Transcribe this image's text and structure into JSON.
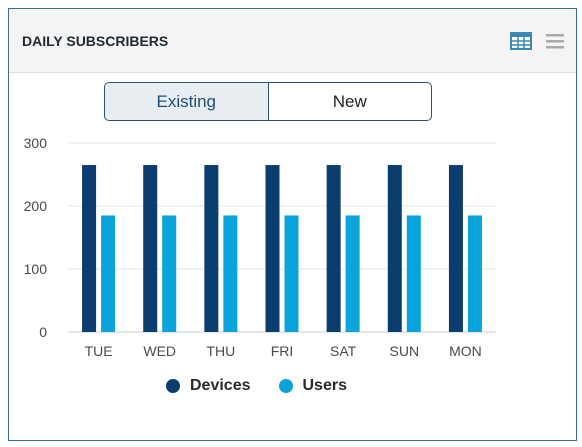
{
  "header": {
    "title": "DAILY SUBSCRIBERS"
  },
  "icons": {
    "table": "table-icon",
    "menu": "menu-icon"
  },
  "toggle": {
    "options": [
      "Existing",
      "New"
    ],
    "selected": "Existing"
  },
  "colors": {
    "devices": "#0b3d6e",
    "users": "#0aa3dc",
    "grid": "#e6e6e6",
    "axis": "#cccccc"
  },
  "chart_data": {
    "type": "bar",
    "categories": [
      "TUE",
      "WED",
      "THU",
      "FRI",
      "SAT",
      "SUN",
      "MON"
    ],
    "series": [
      {
        "name": "Devices",
        "values": [
          265,
          265,
          265,
          265,
          265,
          265,
          265
        ]
      },
      {
        "name": "Users",
        "values": [
          185,
          185,
          185,
          185,
          185,
          185,
          185
        ]
      }
    ],
    "yticks": [
      0,
      100,
      200,
      300
    ],
    "ylim": [
      0,
      300
    ],
    "title": "",
    "xlabel": "",
    "ylabel": "",
    "grid": true,
    "legend": "bottom"
  }
}
